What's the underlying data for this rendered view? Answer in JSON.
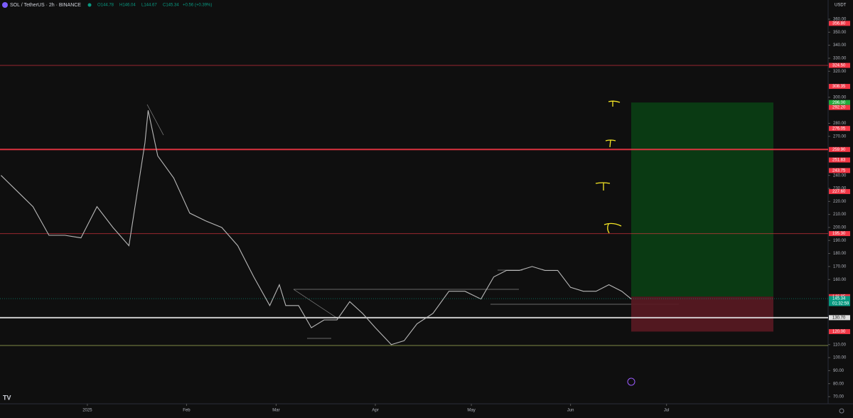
{
  "header": {
    "symbol": "SOL / TetherUS · 2h · BINANCE",
    "open": "O144.78",
    "high": "H146.04",
    "low": "L144.67",
    "close": "C145.34",
    "change": "+0.56 (+0.39%)"
  },
  "chart_data": {
    "type": "line",
    "currency": "USDT",
    "ylim": [
      70,
      360
    ],
    "yticks": [
      {
        "value": 70,
        "label": "70.00"
      },
      {
        "value": 80,
        "label": "80.00"
      },
      {
        "value": 90,
        "label": "90.00"
      },
      {
        "value": 100,
        "label": "100.00"
      },
      {
        "value": 110,
        "label": "110.00"
      },
      {
        "value": 160,
        "label": "160.00"
      },
      {
        "value": 170,
        "label": "170.00"
      },
      {
        "value": 180,
        "label": "180.00"
      },
      {
        "value": 190,
        "label": "190.00"
      },
      {
        "value": 200,
        "label": "200.00"
      },
      {
        "value": 210,
        "label": "210.00"
      },
      {
        "value": 220,
        "label": "220.00"
      },
      {
        "value": 230,
        "label": "230.00"
      },
      {
        "value": 240,
        "label": "240.00"
      },
      {
        "value": 270,
        "label": "270.00"
      },
      {
        "value": 280,
        "label": "280.00"
      },
      {
        "value": 300,
        "label": "300.00"
      },
      {
        "value": 320,
        "label": "320.00"
      },
      {
        "value": 330,
        "label": "330.00"
      },
      {
        "value": 340,
        "label": "340.00"
      },
      {
        "value": 350,
        "label": "350.00"
      },
      {
        "value": 360,
        "label": "360.00"
      }
    ],
    "xlim": [
      -27.3,
      231.5
    ],
    "xticks": [
      {
        "value": 0,
        "label": "2025"
      },
      {
        "value": 31,
        "label": "Feb"
      },
      {
        "value": 59,
        "label": "Mar"
      },
      {
        "value": 90,
        "label": "Apr"
      },
      {
        "value": 120,
        "label": "May"
      },
      {
        "value": 151,
        "label": "Jun"
      },
      {
        "value": 181,
        "label": "Jul"
      }
    ],
    "price": {
      "color": "#b8b8b8",
      "x": [
        -27,
        -22,
        -17,
        -12,
        -7,
        -2,
        3,
        8,
        13,
        18,
        19,
        22,
        27,
        32,
        37,
        42,
        47,
        52,
        57,
        60,
        62,
        66,
        70,
        74,
        78,
        82,
        86,
        90,
        95,
        99,
        103,
        108,
        113,
        118,
        123,
        127,
        131,
        135,
        139,
        143,
        147,
        151,
        155,
        159,
        163,
        167,
        170
      ],
      "values": [
        240,
        228,
        216,
        194,
        194,
        192,
        216,
        200,
        186,
        265,
        290,
        255,
        238,
        211,
        205,
        200,
        186,
        162,
        140,
        156,
        140,
        140,
        123,
        129,
        129,
        143,
        134,
        123,
        110,
        113,
        126,
        134,
        151,
        151,
        145,
        162,
        167,
        167,
        170,
        167,
        167,
        154,
        151,
        151,
        156,
        151,
        145
      ]
    },
    "levels": [
      {
        "value": 356.8,
        "label": "356.80",
        "color": "#f23645",
        "line": 0
      },
      {
        "value": 324.5,
        "label": "324.50",
        "color": "#f23645",
        "line": 1
      },
      {
        "value": 308.35,
        "label": "308.35",
        "color": "#f23645",
        "line": 0
      },
      {
        "value": 296,
        "label": "296.00",
        "color": "#22ab3c",
        "line": 0
      },
      {
        "value": 292.2,
        "label": "292.20",
        "color": "#f23645",
        "line": 0
      },
      {
        "value": 276.05,
        "label": "276.05",
        "color": "#f23645",
        "line": 0
      },
      {
        "value": 259.9,
        "label": "259.90",
        "color": "#f23645",
        "line": 2
      },
      {
        "value": 251.83,
        "label": "251.83",
        "color": "#f23645",
        "line": 0
      },
      {
        "value": 243.75,
        "label": "243.75",
        "color": "#f23645",
        "line": 0
      },
      {
        "value": 227.6,
        "label": "227.60",
        "color": "#f23645",
        "line": 0
      },
      {
        "value": 195.3,
        "label": "195.30",
        "color": "#f23645",
        "line": 1
      },
      {
        "value": 146.85,
        "label": "146.85",
        "color": "#f23645",
        "line": 0
      },
      {
        "value": 145.46,
        "label": "145.46",
        "color": "#5d606b",
        "line": 0
      },
      {
        "value": 130.7,
        "label": "130.70",
        "color": "#e0e0e0",
        "line": 2
      },
      {
        "value": 120,
        "label": "120.00",
        "color": "#f23645",
        "line": 0
      }
    ],
    "current": {
      "value": 145.34,
      "label": "145.34",
      "countdown": "01:32:59",
      "color": "#089981"
    }
  }
}
